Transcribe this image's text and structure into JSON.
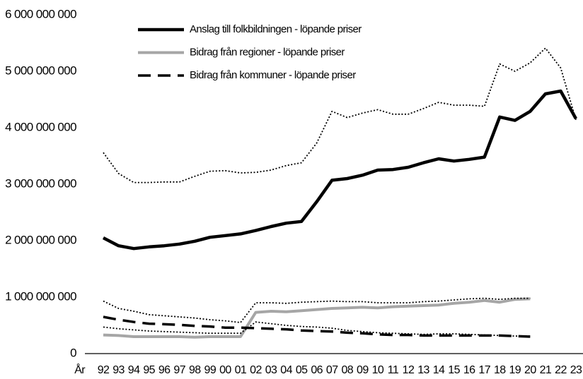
{
  "chart_data": {
    "type": "line",
    "x_label": "År",
    "categories": [
      "92",
      "93",
      "94",
      "95",
      "96",
      "97",
      "98",
      "99",
      "00",
      "01",
      "02",
      "03",
      "04",
      "05",
      "06",
      "07",
      "08",
      "09",
      "10",
      "11",
      "12",
      "13",
      "14",
      "15",
      "16",
      "17",
      "18",
      "19",
      "20",
      "21",
      "22",
      "23"
    ],
    "ylim": [
      0,
      6000000000
    ],
    "yticks": [
      {
        "value": 0,
        "label": "0"
      },
      {
        "value": 1000000000,
        "label": "1 000 000 000"
      },
      {
        "value": 2000000000,
        "label": "2 000 000 000"
      },
      {
        "value": 3000000000,
        "label": "3 000 000 000"
      },
      {
        "value": 4000000000,
        "label": "4 000 000 000"
      },
      {
        "value": 5000000000,
        "label": "5 000 000 000"
      },
      {
        "value": 6000000000,
        "label": "6 000 000 000"
      }
    ],
    "grid": false,
    "legend": "top-left",
    "series": [
      {
        "name": "Anslag till folkbildningen - löpande priser",
        "color": "#000000",
        "style": "solid",
        "values": [
          2050000000,
          1910000000,
          1860000000,
          1890000000,
          1910000000,
          1940000000,
          1990000000,
          2060000000,
          2090000000,
          2120000000,
          2180000000,
          2250000000,
          2310000000,
          2340000000,
          2690000000,
          3070000000,
          3100000000,
          3160000000,
          3250000000,
          3260000000,
          3300000000,
          3380000000,
          3450000000,
          3410000000,
          3440000000,
          3480000000,
          4190000000,
          4130000000,
          4290000000,
          4600000000,
          4650000000,
          4160000000
        ]
      },
      {
        "name": "Bidrag från regioner - löpande priser",
        "color": "#a6a6a6",
        "style": "solid",
        "values": [
          330000000,
          320000000,
          300000000,
          300000000,
          300000000,
          300000000,
          290000000,
          300000000,
          300000000,
          300000000,
          730000000,
          750000000,
          740000000,
          760000000,
          780000000,
          800000000,
          810000000,
          820000000,
          810000000,
          830000000,
          840000000,
          850000000,
          860000000,
          890000000,
          910000000,
          940000000,
          910000000,
          960000000,
          970000000,
          null,
          null,
          null
        ]
      },
      {
        "name": "Bidrag från kommuner - löpande priser",
        "color": "#000000",
        "style": "dashed",
        "values": [
          650000000,
          600000000,
          560000000,
          530000000,
          520000000,
          510000000,
          490000000,
          480000000,
          460000000,
          460000000,
          450000000,
          440000000,
          430000000,
          410000000,
          400000000,
          390000000,
          370000000,
          360000000,
          340000000,
          330000000,
          330000000,
          320000000,
          320000000,
          320000000,
          320000000,
          320000000,
          320000000,
          310000000,
          300000000,
          null,
          null,
          null
        ]
      },
      {
        "color": "#000000",
        "style": "dotted",
        "values": [
          3560000000,
          3190000000,
          3030000000,
          3030000000,
          3040000000,
          3040000000,
          3140000000,
          3230000000,
          3240000000,
          3200000000,
          3210000000,
          3250000000,
          3330000000,
          3380000000,
          3730000000,
          4290000000,
          4180000000,
          4260000000,
          4320000000,
          4240000000,
          4240000000,
          4340000000,
          4450000000,
          4400000000,
          4400000000,
          4380000000,
          5130000000,
          5000000000,
          5150000000,
          5410000000,
          5060000000,
          4140000000
        ]
      },
      {
        "color": "#000000",
        "style": "dotted",
        "values": [
          930000000,
          800000000,
          750000000,
          690000000,
          670000000,
          650000000,
          630000000,
          600000000,
          580000000,
          550000000,
          900000000,
          900000000,
          890000000,
          910000000,
          920000000,
          930000000,
          920000000,
          920000000,
          900000000,
          900000000,
          900000000,
          920000000,
          930000000,
          950000000,
          970000000,
          980000000,
          960000000,
          980000000,
          980000000,
          null,
          null,
          null
        ]
      },
      {
        "color": "#000000",
        "style": "dotted",
        "values": [
          470000000,
          440000000,
          420000000,
          400000000,
          390000000,
          380000000,
          370000000,
          360000000,
          360000000,
          360000000,
          560000000,
          530000000,
          500000000,
          480000000,
          470000000,
          450000000,
          410000000,
          390000000,
          370000000,
          360000000,
          350000000,
          340000000,
          350000000,
          350000000,
          340000000,
          330000000,
          320000000,
          310000000,
          310000000,
          null,
          null,
          null
        ]
      }
    ]
  }
}
